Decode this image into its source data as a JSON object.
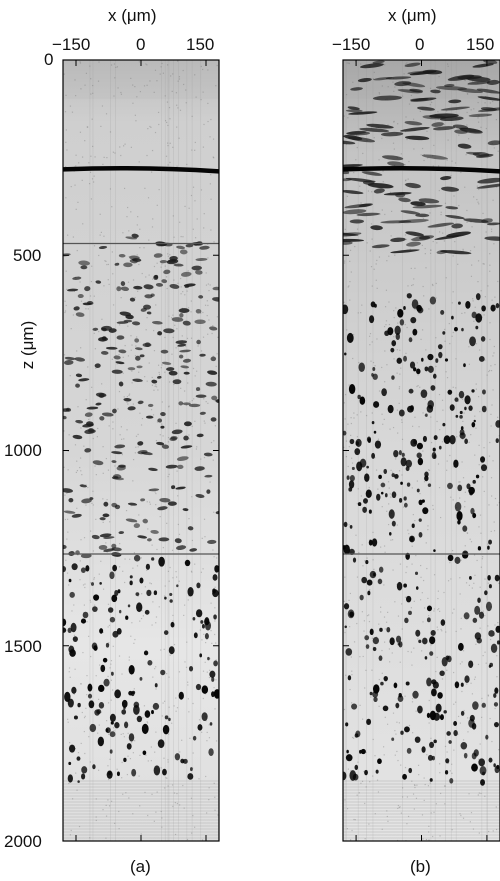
{
  "figure": {
    "panels": [
      {
        "id": "a",
        "caption": "(a)",
        "x_axis_title": "x (μm)",
        "x_ticks": [
          "−150",
          "0",
          "150"
        ],
        "y_axis_title": "z (μm)",
        "y_ticks": [
          "0",
          "500",
          "1000",
          "1500",
          "2000"
        ]
      },
      {
        "id": "b",
        "caption": "(b)",
        "x_axis_title": "x (μm)",
        "x_ticks": [
          "−150",
          "0",
          "150"
        ]
      }
    ]
  },
  "chart_data": [
    {
      "type": "heatmap",
      "panel": "a",
      "xlabel": "x (μm)",
      "ylabel": "z (μm)",
      "xlim": [
        -180,
        180
      ],
      "ylim": [
        0,
        2000
      ],
      "x_ticks": [
        -150,
        0,
        150
      ],
      "y_ticks": [
        0,
        500,
        1000,
        1500,
        2000
      ],
      "colormap": "grayscale",
      "features": {
        "dark_band_z": 280,
        "seam_lines_z": [
          470,
          1265
        ]
      }
    },
    {
      "type": "heatmap",
      "panel": "b",
      "xlabel": "x (μm)",
      "xlim": [
        -180,
        180
      ],
      "ylim": [
        0,
        2000
      ],
      "x_ticks": [
        -150,
        0,
        150
      ],
      "colormap": "grayscale",
      "features": {
        "dark_band_z": 280,
        "seam_lines_z": [
          1265
        ]
      }
    }
  ]
}
